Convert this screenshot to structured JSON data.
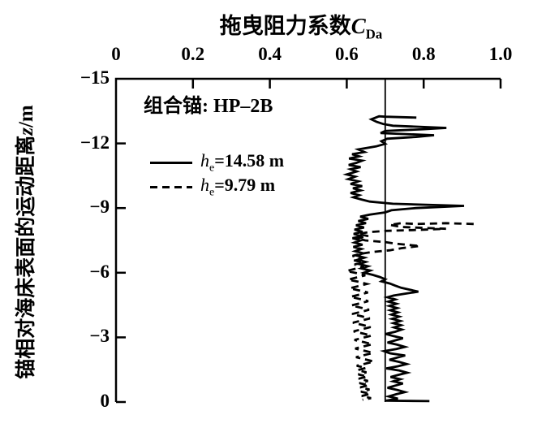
{
  "window": {
    "background": "#ffffff",
    "ink": "#000000"
  },
  "title": {
    "prefix": "拖曳阻力系数",
    "var": "C",
    "var_sub": "Da"
  },
  "y_axis_label": {
    "prefix": "锚相对海床表面的运动距离",
    "var": "z",
    "unit": "/m"
  },
  "legend": {
    "title": "组合锚: HP–2B",
    "entries": [
      {
        "line_style": "solid",
        "var": "h",
        "var_sub": "e",
        "text": "=14.58 m"
      },
      {
        "line_style": "dashed",
        "var": "h",
        "var_sub": "e",
        "text": "=9.79 m"
      }
    ]
  },
  "chart_data": {
    "type": "line",
    "title": "拖曳阻力系数 C_Da",
    "xlabel": "拖曳阻力系数 C_Da",
    "ylabel": "锚相对海床表面的运动距离 z/m",
    "x_axis": {
      "position": "top",
      "range": [
        0,
        1
      ],
      "ticks": [
        "0",
        "0.2",
        "0.4",
        "0.6",
        "0.8",
        "1.0"
      ],
      "tick_values": [
        0,
        0.2,
        0.4,
        0.6,
        0.8,
        1.0
      ]
    },
    "y_axis": {
      "range": [
        -15,
        0
      ],
      "ticks": [
        "−15",
        "−12",
        "−9",
        "−6",
        "−3",
        "0"
      ],
      "tick_values": [
        -15,
        -12,
        -9,
        -6,
        -3,
        0
      ]
    },
    "reference_line_x": 0.7,
    "grid": false,
    "legend_position": "inside-top-left",
    "series": [
      {
        "name": "h_e=14.58 m",
        "style": "solid",
        "color": "#000000",
        "points": [
          [
            0.781,
            -13.2
          ],
          [
            0.7,
            -13.24
          ],
          [
            0.684,
            -13.26
          ],
          [
            0.664,
            -13.12
          ],
          [
            0.678,
            -13.0
          ],
          [
            0.695,
            -12.9
          ],
          [
            0.72,
            -12.82
          ],
          [
            0.859,
            -12.72
          ],
          [
            0.8,
            -12.66
          ],
          [
            0.7,
            -12.58
          ],
          [
            0.688,
            -12.48
          ],
          [
            0.827,
            -12.38
          ],
          [
            0.78,
            -12.3
          ],
          [
            0.705,
            -12.22
          ],
          [
            0.69,
            -12.1
          ],
          [
            0.7,
            -11.98
          ],
          [
            0.676,
            -11.86
          ],
          [
            0.63,
            -11.72
          ],
          [
            0.646,
            -11.6
          ],
          [
            0.614,
            -11.5
          ],
          [
            0.632,
            -11.4
          ],
          [
            0.606,
            -11.3
          ],
          [
            0.64,
            -11.2
          ],
          [
            0.625,
            -11.1
          ],
          [
            0.605,
            -11.0
          ],
          [
            0.636,
            -10.9
          ],
          [
            0.61,
            -10.8
          ],
          [
            0.626,
            -10.7
          ],
          [
            0.6,
            -10.56
          ],
          [
            0.622,
            -10.46
          ],
          [
            0.604,
            -10.34
          ],
          [
            0.63,
            -10.24
          ],
          [
            0.61,
            -10.12
          ],
          [
            0.64,
            -10.02
          ],
          [
            0.616,
            -9.92
          ],
          [
            0.636,
            -9.82
          ],
          [
            0.61,
            -9.7
          ],
          [
            0.632,
            -9.6
          ],
          [
            0.617,
            -9.5
          ],
          [
            0.638,
            -9.4
          ],
          [
            0.66,
            -9.3
          ],
          [
            0.72,
            -9.2
          ],
          [
            0.905,
            -9.1
          ],
          [
            0.78,
            -9.0
          ],
          [
            0.716,
            -8.9
          ],
          [
            0.7,
            -8.8
          ],
          [
            0.66,
            -8.7
          ],
          [
            0.635,
            -8.6
          ],
          [
            0.656,
            -8.5
          ],
          [
            0.63,
            -8.4
          ],
          [
            0.65,
            -8.3
          ],
          [
            0.624,
            -8.2
          ],
          [
            0.645,
            -8.1
          ],
          [
            0.62,
            -8.0
          ],
          [
            0.641,
            -7.9
          ],
          [
            0.618,
            -7.8
          ],
          [
            0.639,
            -7.7
          ],
          [
            0.615,
            -7.6
          ],
          [
            0.636,
            -7.5
          ],
          [
            0.62,
            -7.4
          ],
          [
            0.641,
            -7.3
          ],
          [
            0.617,
            -7.2
          ],
          [
            0.638,
            -7.1
          ],
          [
            0.622,
            -7.0
          ],
          [
            0.643,
            -6.9
          ],
          [
            0.625,
            -6.8
          ],
          [
            0.646,
            -6.7
          ],
          [
            0.628,
            -6.6
          ],
          [
            0.649,
            -6.5
          ],
          [
            0.632,
            -6.4
          ],
          [
            0.655,
            -6.3
          ],
          [
            0.638,
            -6.2
          ],
          [
            0.661,
            -6.1
          ],
          [
            0.645,
            -6.0
          ],
          [
            0.668,
            -5.9
          ],
          [
            0.686,
            -5.8
          ],
          [
            0.7,
            -5.7
          ],
          [
            0.69,
            -5.6
          ],
          [
            0.712,
            -5.5
          ],
          [
            0.726,
            -5.4
          ],
          [
            0.742,
            -5.3
          ],
          [
            0.786,
            -5.12
          ],
          [
            0.75,
            -5.02
          ],
          [
            0.722,
            -4.94
          ],
          [
            0.706,
            -4.86
          ],
          [
            0.726,
            -4.76
          ],
          [
            0.708,
            -4.66
          ],
          [
            0.729,
            -4.56
          ],
          [
            0.711,
            -4.46
          ],
          [
            0.731,
            -4.36
          ],
          [
            0.713,
            -4.26
          ],
          [
            0.733,
            -4.16
          ],
          [
            0.716,
            -4.06
          ],
          [
            0.736,
            -3.96
          ],
          [
            0.718,
            -3.86
          ],
          [
            0.739,
            -3.76
          ],
          [
            0.721,
            -3.66
          ],
          [
            0.741,
            -3.56
          ],
          [
            0.723,
            -3.46
          ],
          [
            0.743,
            -3.36
          ],
          [
            0.726,
            -3.26
          ],
          [
            0.701,
            -3.16
          ],
          [
            0.721,
            -3.06
          ],
          [
            0.746,
            -2.96
          ],
          [
            0.726,
            -2.86
          ],
          [
            0.706,
            -2.76
          ],
          [
            0.731,
            -2.66
          ],
          [
            0.751,
            -2.56
          ],
          [
            0.729,
            -2.46
          ],
          [
            0.697,
            -2.36
          ],
          [
            0.712,
            -2.26
          ],
          [
            0.752,
            -2.16
          ],
          [
            0.731,
            -2.06
          ],
          [
            0.711,
            -1.96
          ],
          [
            0.736,
            -1.86
          ],
          [
            0.756,
            -1.76
          ],
          [
            0.733,
            -1.66
          ],
          [
            0.703,
            -1.56
          ],
          [
            0.737,
            -1.46
          ],
          [
            0.757,
            -1.36
          ],
          [
            0.734,
            -1.26
          ],
          [
            0.714,
            -1.16
          ],
          [
            0.739,
            -1.06
          ],
          [
            0.721,
            -0.96
          ],
          [
            0.746,
            -0.86
          ],
          [
            0.726,
            -0.76
          ],
          [
            0.706,
            -0.66
          ],
          [
            0.731,
            -0.56
          ],
          [
            0.751,
            -0.46
          ],
          [
            0.729,
            -0.36
          ],
          [
            0.709,
            -0.26
          ],
          [
            0.733,
            -0.16
          ],
          [
            0.702,
            -0.06
          ],
          [
            0.815,
            -0.04
          ]
        ]
      },
      {
        "name": "h_e=9.79 m",
        "style": "dashed",
        "color": "#000000",
        "points": [
          [
            0.93,
            -8.26
          ],
          [
            0.858,
            -8.3
          ],
          [
            0.78,
            -8.26
          ],
          [
            0.742,
            -8.3
          ],
          [
            0.712,
            -8.22
          ],
          [
            0.742,
            -8.12
          ],
          [
            0.858,
            -8.04
          ],
          [
            0.772,
            -7.98
          ],
          [
            0.7,
            -7.94
          ],
          [
            0.656,
            -7.88
          ],
          [
            0.63,
            -7.8
          ],
          [
            0.656,
            -7.7
          ],
          [
            0.625,
            -7.6
          ],
          [
            0.648,
            -7.5
          ],
          [
            0.7,
            -7.42
          ],
          [
            0.73,
            -7.34
          ],
          [
            0.79,
            -7.24
          ],
          [
            0.742,
            -7.14
          ],
          [
            0.712,
            -7.04
          ],
          [
            0.665,
            -6.96
          ],
          [
            0.636,
            -6.88
          ],
          [
            0.615,
            -6.78
          ],
          [
            0.64,
            -6.68
          ],
          [
            0.618,
            -6.58
          ],
          [
            0.642,
            -6.48
          ],
          [
            0.62,
            -6.38
          ],
          [
            0.645,
            -6.28
          ],
          [
            0.622,
            -6.18
          ],
          [
            0.6,
            -6.08
          ],
          [
            0.625,
            -5.98
          ],
          [
            0.648,
            -5.88
          ],
          [
            0.626,
            -5.78
          ],
          [
            0.604,
            -5.68
          ],
          [
            0.63,
            -5.58
          ],
          [
            0.652,
            -5.48
          ],
          [
            0.63,
            -5.38
          ],
          [
            0.608,
            -5.28
          ],
          [
            0.632,
            -5.18
          ],
          [
            0.655,
            -5.08
          ],
          [
            0.632,
            -4.98
          ],
          [
            0.61,
            -4.88
          ],
          [
            0.634,
            -4.78
          ],
          [
            0.656,
            -4.68
          ],
          [
            0.634,
            -4.58
          ],
          [
            0.612,
            -4.48
          ],
          [
            0.636,
            -4.38
          ],
          [
            0.658,
            -4.28
          ],
          [
            0.636,
            -4.18
          ],
          [
            0.614,
            -4.08
          ],
          [
            0.638,
            -3.98
          ],
          [
            0.66,
            -3.88
          ],
          [
            0.638,
            -3.78
          ],
          [
            0.616,
            -3.68
          ],
          [
            0.64,
            -3.58
          ],
          [
            0.662,
            -3.48
          ],
          [
            0.64,
            -3.38
          ],
          [
            0.618,
            -3.28
          ],
          [
            0.642,
            -3.18
          ],
          [
            0.664,
            -3.08
          ],
          [
            0.642,
            -2.98
          ],
          [
            0.62,
            -2.88
          ],
          [
            0.644,
            -2.78
          ],
          [
            0.666,
            -2.68
          ],
          [
            0.644,
            -2.58
          ],
          [
            0.622,
            -2.48
          ],
          [
            0.646,
            -2.38
          ],
          [
            0.668,
            -2.28
          ],
          [
            0.646,
            -2.18
          ],
          [
            0.624,
            -2.08
          ],
          [
            0.648,
            -1.98
          ],
          [
            0.67,
            -1.88
          ],
          [
            0.648,
            -1.78
          ],
          [
            0.626,
            -1.68
          ],
          [
            0.65,
            -1.58
          ],
          [
            0.628,
            -1.48
          ],
          [
            0.651,
            -1.38
          ],
          [
            0.63,
            -1.28
          ],
          [
            0.653,
            -1.18
          ],
          [
            0.631,
            -1.08
          ],
          [
            0.655,
            -0.98
          ],
          [
            0.633,
            -0.88
          ],
          [
            0.657,
            -0.78
          ],
          [
            0.635,
            -0.68
          ],
          [
            0.659,
            -0.58
          ],
          [
            0.637,
            -0.48
          ],
          [
            0.661,
            -0.38
          ],
          [
            0.639,
            -0.28
          ],
          [
            0.663,
            -0.18
          ],
          [
            0.641,
            -0.1
          ]
        ]
      }
    ]
  }
}
